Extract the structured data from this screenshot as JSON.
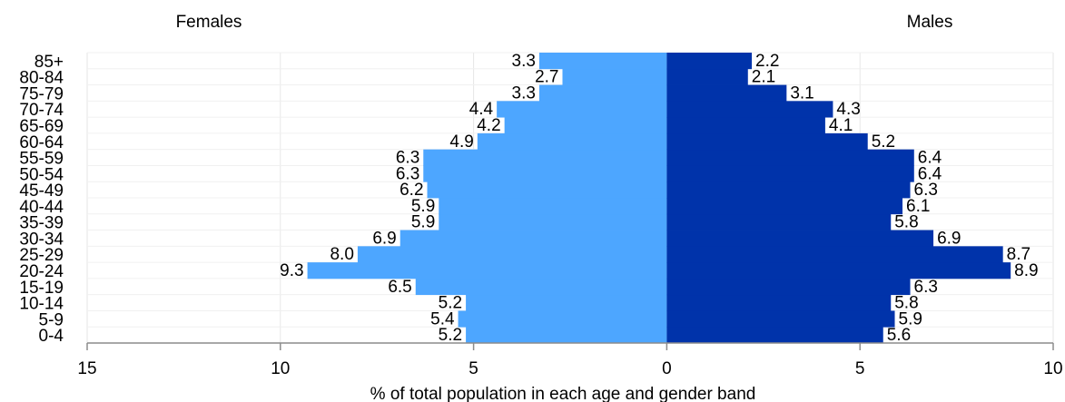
{
  "chart_data": {
    "type": "bar",
    "orientation": "horizontal",
    "layout": "population-pyramid",
    "header_left": "Females",
    "header_right": "Males",
    "xlabel": "% of total population in each age and gender band",
    "ylabel": "",
    "xlim": [
      -15,
      10
    ],
    "x_ticks": [
      {
        "value": -15,
        "label": "15"
      },
      {
        "value": -10,
        "label": "10"
      },
      {
        "value": -5,
        "label": "5"
      },
      {
        "value": 0,
        "label": "0"
      },
      {
        "value": 5,
        "label": "5"
      },
      {
        "value": 10,
        "label": "10"
      }
    ],
    "grid": "vertical",
    "categories": [
      "0-4",
      "5-9",
      "10-14",
      "15-19",
      "20-24",
      "25-29",
      "30-34",
      "35-39",
      "40-44",
      "45-49",
      "50-54",
      "55-59",
      "60-64",
      "65-69",
      "70-74",
      "75-79",
      "80-84",
      "85+"
    ],
    "series": [
      {
        "name": "Females",
        "side": "left",
        "color": "#4da6ff",
        "values": [
          5.2,
          5.4,
          5.2,
          6.5,
          9.3,
          8.0,
          6.9,
          5.9,
          5.9,
          6.2,
          6.3,
          6.3,
          4.9,
          4.2,
          4.4,
          3.3,
          2.7,
          3.3
        ]
      },
      {
        "name": "Males",
        "side": "right",
        "color": "#0033aa",
        "values": [
          5.6,
          5.9,
          5.8,
          6.3,
          8.9,
          8.7,
          6.9,
          5.8,
          6.1,
          6.3,
          6.4,
          6.4,
          5.2,
          4.1,
          4.3,
          3.1,
          2.1,
          2.2
        ]
      }
    ],
    "data_labels": {
      "Females": [
        "5.2",
        "5.4",
        "5.2",
        "6.5",
        "9.3",
        "8.0",
        "6.9",
        "5.9",
        "5.9",
        "6.2",
        "6.3",
        "6.3",
        "4.9",
        "4.2",
        "4.4",
        "3.3",
        "2.7",
        "3.3"
      ],
      "Males": [
        "5.6",
        "5.9",
        "5.8",
        "6.3",
        "8.9",
        "8.7",
        "6.9",
        "5.8",
        "6.1",
        "6.3",
        "6.4",
        "6.4",
        "5.2",
        "4.1",
        "4.3",
        "3.1",
        "2.1",
        "2.2"
      ]
    }
  }
}
